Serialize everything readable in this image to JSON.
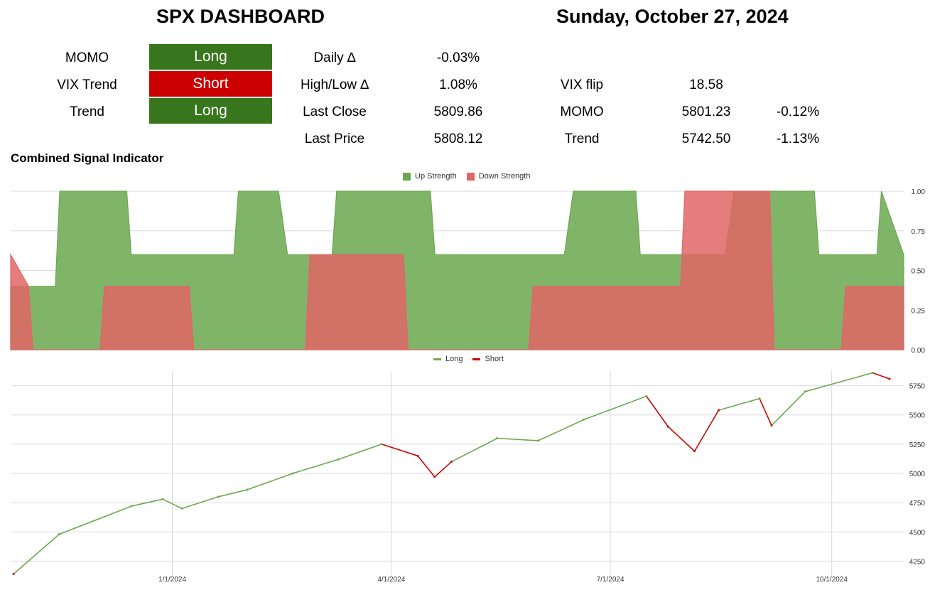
{
  "header": {
    "title": "SPX DASHBOARD",
    "date": "Sunday, October 27, 2024"
  },
  "signals": [
    {
      "label": "MOMO",
      "value": "Long",
      "color": "#38761d"
    },
    {
      "label": "VIX Trend",
      "value": "Short",
      "color": "#cc0000"
    },
    {
      "label": "Trend",
      "value": "Long",
      "color": "#38761d"
    }
  ],
  "stats": {
    "daily_label": "Daily ∆",
    "daily_value": "-0.03%",
    "hilo_label": "High/Low ∆",
    "hilo_value": "1.08%",
    "lastclose_label": "Last Close",
    "lastclose_value": "5809.86",
    "lastprice_label": "Last Price",
    "lastprice_value": "5808.12"
  },
  "levels": {
    "vixflip_label": "VIX flip",
    "vixflip_value": "18.58",
    "momo_label": "MOMO",
    "momo_value": "5801.23",
    "momo_pct": "-0.12%",
    "trend_label": "Trend",
    "trend_value": "5742.50",
    "trend_pct": "-1.13%"
  },
  "section_title": "Combined Signal Indicator",
  "chart_data": [
    {
      "type": "area",
      "legend_position": "top-center",
      "series": [
        {
          "name": "Up Strength",
          "color": "#6aa84f",
          "x": [
            0,
            0.05,
            0.055,
            0.13,
            0.135,
            0.25,
            0.255,
            0.3,
            0.31,
            0.36,
            0.365,
            0.47,
            0.475,
            0.62,
            0.63,
            0.7,
            0.705,
            0.8,
            0.81,
            0.9,
            0.905,
            0.97,
            0.975,
            1
          ],
          "values": [
            0.4,
            0.4,
            1.0,
            1.0,
            0.6,
            0.6,
            1.0,
            1.0,
            0.6,
            0.6,
            1.0,
            1.0,
            0.6,
            0.6,
            1.0,
            1.0,
            0.6,
            0.6,
            1.0,
            1.0,
            0.6,
            0.6,
            1.0,
            0.6
          ]
        },
        {
          "name": "Down Strength",
          "color": "#e06666",
          "x": [
            0,
            0.02,
            0.025,
            0.1,
            0.105,
            0.2,
            0.205,
            0.33,
            0.335,
            0.44,
            0.445,
            0.58,
            0.585,
            0.75,
            0.755,
            0.85,
            0.855,
            0.93,
            0.935,
            1
          ],
          "values": [
            0.6,
            0.4,
            0.0,
            0.0,
            0.4,
            0.4,
            0.0,
            0.0,
            0.6,
            0.6,
            0.0,
            0.0,
            0.4,
            0.4,
            1.0,
            1.0,
            0.0,
            0.0,
            0.4,
            0.4
          ]
        }
      ],
      "yticks": [
        "1.00",
        "0.75",
        "0.50",
        "0.25",
        "0.00"
      ],
      "ylim": [
        0,
        1
      ]
    },
    {
      "type": "line",
      "legend_position": "top-center",
      "series": [
        {
          "name": "Long",
          "color": "#6aa84f"
        },
        {
          "name": "Short",
          "color": "#cc0000"
        }
      ],
      "points": [
        [
          "2023-10-27",
          4140
        ],
        [
          "2023-11-15",
          4480
        ],
        [
          "2023-12-15",
          4720
        ],
        [
          "2023-12-28",
          4780
        ],
        [
          "2024-01-05",
          4700
        ],
        [
          "2024-01-20",
          4800
        ],
        [
          "2024-02-01",
          4860
        ],
        [
          "2024-02-20",
          5000
        ],
        [
          "2024-03-10",
          5120
        ],
        [
          "2024-03-28",
          5250
        ],
        [
          "2024-04-12",
          5150
        ],
        [
          "2024-04-19",
          4970
        ],
        [
          "2024-04-26",
          5100
        ],
        [
          "2024-05-15",
          5300
        ],
        [
          "2024-06-01",
          5280
        ],
        [
          "2024-06-20",
          5460
        ],
        [
          "2024-07-16",
          5660
        ],
        [
          "2024-07-25",
          5400
        ],
        [
          "2024-08-05",
          5190
        ],
        [
          "2024-08-15",
          5540
        ],
        [
          "2024-09-01",
          5640
        ],
        [
          "2024-09-06",
          5410
        ],
        [
          "2024-09-20",
          5700
        ],
        [
          "2024-10-18",
          5860
        ],
        [
          "2024-10-25",
          5808
        ]
      ],
      "signal": [
        "Short",
        "Long",
        "Long",
        "Long",
        "Long",
        "Long",
        "Long",
        "Long",
        "Long",
        "Long",
        "Short",
        "Short",
        "Short",
        "Long",
        "Long",
        "Long",
        "Long",
        "Short",
        "Short",
        "Short",
        "Long",
        "Short",
        "Long",
        "Long",
        "Short"
      ],
      "xticks": [
        "1/1/2024",
        "4/1/2024",
        "7/1/2024",
        "10/1/2024"
      ],
      "yticks": [
        "5750",
        "5500",
        "5250",
        "5000",
        "4750",
        "4500",
        "4250"
      ],
      "ylim": [
        4125,
        5875
      ]
    }
  ]
}
